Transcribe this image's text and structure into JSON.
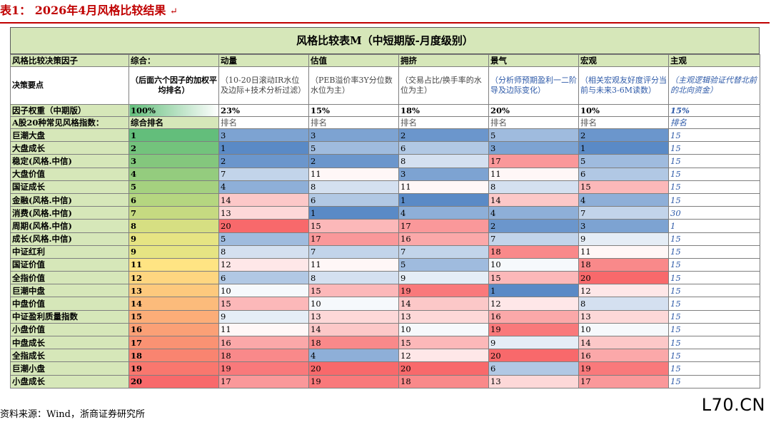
{
  "caption": {
    "label": "表1：",
    "text": "2026年4月风格比较结果",
    "mark": "↵"
  },
  "table": {
    "title": "风格比较表M（中短期版-月度级别）",
    "header": [
      "风格比较决策因子",
      "综合：",
      "动量",
      "估值",
      "拥挤",
      "景气",
      "宏观",
      "主观"
    ],
    "desc_label": "决策要点",
    "desc": [
      "（后面六个因子的加权平均排名）",
      "（10-20日滚动IR水位及边际+技术分析过滤）",
      "（PEB溢价率3Y分位数水位为主）",
      "（交易占比/换手率的水位为主）",
      "（分析师预期盈利一二阶导及边际变化）",
      "（相关宏观友好度评分当前与未来3-6M读数）",
      "（主观逻辑验证代替北前的北向资金）"
    ],
    "weight_label": "因子权重（中期版）",
    "weights": [
      "100%",
      "23%",
      "15%",
      "18%",
      "20%",
      "10%",
      "15%"
    ],
    "sub_label": "A股20种常见风格指数：",
    "sub": [
      "综合排名",
      "排名",
      "排名",
      "排名",
      "排名",
      "排名",
      "排名"
    ],
    "rows": [
      {
        "name": "巨潮大盘",
        "vals": [
          "1",
          "3",
          "3",
          "2",
          "5",
          "2",
          "15"
        ]
      },
      {
        "name": "大盘成长",
        "vals": [
          "2",
          "1",
          "5",
          "6",
          "3",
          "1",
          "15"
        ]
      },
      {
        "name": "稳定(风格.中信)",
        "vals": [
          "3",
          "2",
          "2",
          "8",
          "17",
          "5",
          "15"
        ]
      },
      {
        "name": "大盘价值",
        "vals": [
          "4",
          "7",
          "11",
          "3",
          "11",
          "6",
          "15"
        ]
      },
      {
        "name": "国证成长",
        "vals": [
          "5",
          "4",
          "8",
          "11",
          "8",
          "15",
          "15"
        ]
      },
      {
        "name": "金融(风格.中信)",
        "vals": [
          "6",
          "14",
          "6",
          "1",
          "14",
          "4",
          "15"
        ]
      },
      {
        "name": "消费(风格.中信)",
        "vals": [
          "7",
          "13",
          "1",
          "4",
          "4",
          "7",
          "30"
        ]
      },
      {
        "name": "周期(风格.中信)",
        "vals": [
          "8",
          "20",
          "15",
          "17",
          "2",
          "3",
          "1"
        ]
      },
      {
        "name": "成长(风格.中信)",
        "vals": [
          "9",
          "5",
          "17",
          "16",
          "7",
          "9",
          "15"
        ]
      },
      {
        "name": "中证红利",
        "vals": [
          "9",
          "8",
          "7",
          "7",
          "18",
          "11",
          "15"
        ]
      },
      {
        "name": "国证价值",
        "vals": [
          "11",
          "12",
          "11",
          "5",
          "10",
          "18",
          "15"
        ]
      },
      {
        "name": "全指价值",
        "vals": [
          "12",
          "6",
          "8",
          "9",
          "15",
          "20",
          "15"
        ]
      },
      {
        "name": "巨潮中盘",
        "vals": [
          "13",
          "10",
          "15",
          "19",
          "1",
          "12",
          "15"
        ]
      },
      {
        "name": "中盘价值",
        "vals": [
          "14",
          "15",
          "10",
          "14",
          "12",
          "8",
          "15"
        ]
      },
      {
        "name": "中证盈利质量指数",
        "vals": [
          "15",
          "9",
          "13",
          "13",
          "16",
          "13",
          "15"
        ]
      },
      {
        "name": "小盘价值",
        "vals": [
          "16",
          "11",
          "14",
          "10",
          "19",
          "10",
          "15"
        ]
      },
      {
        "name": "中盘成长",
        "vals": [
          "17",
          "16",
          "18",
          "15",
          "9",
          "14",
          "15"
        ]
      },
      {
        "name": "全指成长",
        "vals": [
          "18",
          "18",
          "4",
          "12",
          "20",
          "16",
          "15"
        ]
      },
      {
        "name": "巨潮小盘",
        "vals": [
          "19",
          "19",
          "20",
          "20",
          "6",
          "19",
          "15"
        ]
      },
      {
        "name": "小盘成长",
        "vals": [
          "20",
          "17",
          "19",
          "18",
          "13",
          "17",
          "15"
        ]
      }
    ]
  },
  "footer": "资料来源：Wind，浙商证券研究所",
  "watermark": "L70.CN",
  "colors": {
    "header_green": "#d6e7b9",
    "rank_best_blue": "#5a8ac6",
    "rank_worst_red": "#f8696b",
    "composite_best_green": "#63be7b",
    "composite_worst_red": "#f8696b",
    "caption_red": "#c00000"
  }
}
